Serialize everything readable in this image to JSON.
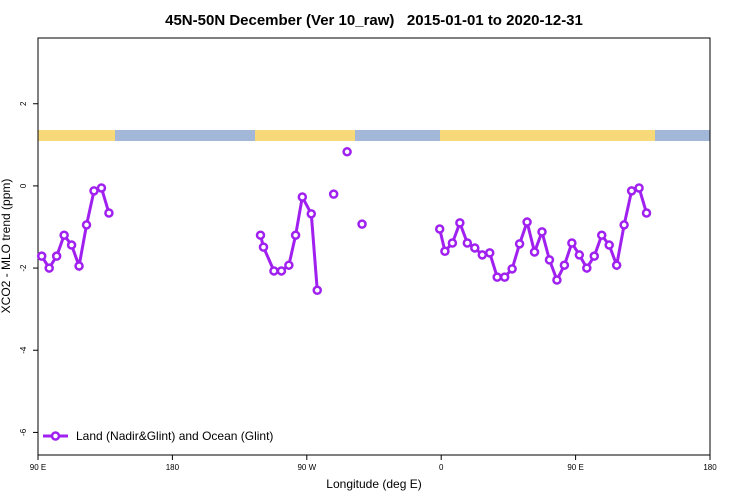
{
  "chart_data": {
    "type": "line",
    "title": "45N-50N December (Ver 10_raw)   2015-01-01 to 2020-12-31",
    "x_label": "Longitude (deg E)",
    "y_label": "XCO2 - MLO trend (ppm)",
    "xlim": [
      90,
      540
    ],
    "ylim": [
      -6.55,
      3.6
    ],
    "xticks": [
      {
        "value": 90,
        "label": "90 E"
      },
      180,
      {
        "value": 270,
        "label": "90 W"
      },
      {
        "value": 360,
        "label": "0"
      },
      {
        "value": 450,
        "label": "90 E"
      },
      {
        "value": 540,
        "label": "180"
      }
    ],
    "yticks": [
      -6,
      -4,
      -2,
      0,
      2
    ],
    "legend": "bottom-left",
    "series": [
      {
        "name": "Land (Nadir&Glint) and Ocean (Glint)",
        "color": "#a020f0",
        "x": [
          92.5,
          97.5,
          102.5,
          107.5,
          112.5,
          117.5,
          122.5,
          127.5,
          132.5,
          137.5,
          null,
          239,
          241,
          248,
          253,
          258,
          262.5,
          267,
          273,
          277,
          null,
          288,
          null,
          297,
          null,
          307,
          null,
          359,
          362.5,
          367.5,
          372.5,
          377.5,
          382.5,
          387.5,
          392.5,
          397.5,
          402.5,
          407.5,
          412.5,
          417.5,
          422.5,
          427.5,
          432.5,
          437.5,
          442.5,
          447.5,
          452.5,
          457.5,
          462.5,
          467.5,
          472.5,
          477.5,
          482.5,
          487.5,
          492.5,
          497.5
        ],
        "values": [
          -1.71,
          -2.0,
          -1.71,
          -1.2,
          -1.44,
          -1.95,
          -0.95,
          -0.12,
          -0.05,
          -0.66,
          null,
          -1.2,
          -1.49,
          -2.07,
          -2.07,
          -1.93,
          -1.2,
          -0.27,
          -0.68,
          -2.54,
          null,
          -0.2,
          null,
          0.83,
          null,
          -0.93,
          null,
          -1.05,
          -1.59,
          -1.39,
          -0.9,
          -1.39,
          -1.51,
          -1.68,
          -1.63,
          -2.22,
          -2.22,
          -2.02,
          -1.41,
          -0.88,
          -1.61,
          -1.12,
          -1.8,
          -2.29,
          -1.93,
          -1.39,
          -1.68,
          -2.0,
          -1.71,
          -1.2,
          -1.44,
          -1.93,
          -0.95,
          -0.12,
          -0.05,
          -0.66
        ]
      }
    ]
  }
}
